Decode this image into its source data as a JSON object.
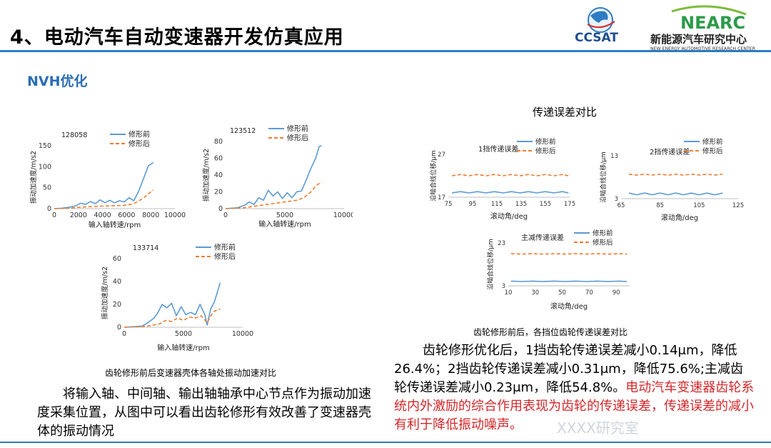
{
  "slide": {
    "title": "4、电动汽车自动变速器开发仿真应用",
    "subtitle": "NVH优化",
    "accent_color": "#2d7cc3",
    "highlight_color": "#d3272a"
  },
  "logos": {
    "ccsat": {
      "text": "CCSAT",
      "icon": "globe-logo-icon"
    },
    "nearc": {
      "text": "NEARC",
      "cn": "新能源汽车研究中心",
      "en": "NEW ENERGY AUTOMOTIVE RESEARCH CENTER"
    }
  },
  "legend": {
    "before": "修形前",
    "after": "修形后"
  },
  "left_caption": "齿轮修形前后变速器壳体各轴处振动加速对比",
  "left_paragraph": "将输入轴、中间轴、输出轴轴承中心节点作为振动加速度采集位置，从图中可以看出齿轮修形有效改善了变速器壳体的振动情况",
  "right_heading": "传递误差对比",
  "right_caption": "齿轮修形前后，各挡位齿轮传递误差对比",
  "right_paragraph_black": "齿轮修形优化后，1挡齿轮传递误差减小0.14μm，降低26.4%；2挡齿轮传递误差减小0.31μm，降低75.6%;主减齿轮传递误差减小0.23μm，降低54.8%。",
  "right_paragraph_red": "电动汽车变速器齿轮系统内外激励的综合作用表现为齿轮的传递误差，传递误差的减小有利于降低振动噪声。",
  "watermark": "XXXX研究室",
  "chart_data": [
    {
      "type": "line",
      "title": "128058",
      "xlabel": "输入轴转速/rpm",
      "ylabel": "振动加速度/m/s2",
      "xlim": [
        0,
        10000
      ],
      "ylim": [
        0,
        150
      ],
      "xticks": [
        "0",
        "2000",
        "4000",
        "6000",
        "8000",
        "10000"
      ],
      "yticks": [
        "0",
        "50",
        "100",
        "150"
      ],
      "legend": "top-right",
      "series": [
        {
          "name": "修形前",
          "color": "#5b9bd5",
          "dash": false,
          "x": [
            0,
            600,
            1200,
            1800,
            2200,
            2600,
            3000,
            3400,
            3800,
            4200,
            4600,
            5000,
            5400,
            5800,
            6200,
            6600,
            7000,
            7400,
            7800,
            8200
          ],
          "y": [
            0,
            1,
            3,
            7,
            13,
            10,
            17,
            12,
            21,
            14,
            20,
            14,
            19,
            16,
            26,
            19,
            42,
            72,
            102,
            110
          ]
        },
        {
          "name": "修形后",
          "color": "#ed7d31",
          "dash": true,
          "x": [
            0,
            1000,
            2000,
            3000,
            4000,
            5000,
            5800,
            6500,
            7000,
            7500,
            8000,
            8200
          ],
          "y": [
            0,
            1,
            3,
            5,
            6,
            7,
            8,
            11,
            18,
            28,
            40,
            45
          ]
        }
      ]
    },
    {
      "type": "line",
      "title": "123512",
      "xlabel": "输入轴转速/rpm",
      "ylabel": "振动加速度/m/s2",
      "xlim": [
        0,
        10000
      ],
      "ylim": [
        0,
        80
      ],
      "xticks": [
        "0",
        "5000",
        "10000"
      ],
      "yticks": [
        "0",
        "20",
        "40",
        "60",
        "80"
      ],
      "legend": "top-right",
      "series": [
        {
          "name": "修形前",
          "color": "#5b9bd5",
          "dash": false,
          "x": [
            0,
            1000,
            1600,
            2000,
            2400,
            2800,
            3200,
            3600,
            4000,
            4400,
            4800,
            5200,
            5600,
            6000,
            6400,
            6800,
            7200,
            7600,
            7900,
            8100
          ],
          "y": [
            0,
            1,
            4,
            8,
            5,
            13,
            10,
            22,
            15,
            20,
            12,
            19,
            13,
            20,
            21,
            34,
            48,
            60,
            74,
            75
          ]
        },
        {
          "name": "修形后",
          "color": "#ed7d31",
          "dash": true,
          "x": [
            0,
            1500,
            3000,
            4000,
            5000,
            6000,
            6600,
            7200,
            7700,
            8100
          ],
          "y": [
            0,
            1,
            4,
            6,
            8,
            10,
            13,
            20,
            28,
            32
          ]
        }
      ]
    },
    {
      "type": "line",
      "title": "133714",
      "xlabel": "输入轴转速/rpm",
      "ylabel": "振动加速度/m/s2",
      "xlim": [
        0,
        10000
      ],
      "ylim": [
        0,
        60
      ],
      "xticks": [
        "0",
        "5000",
        "10000"
      ],
      "yticks": [
        "0",
        "20",
        "40",
        "60"
      ],
      "legend": "top-right",
      "series": [
        {
          "name": "修形前",
          "color": "#5b9bd5",
          "dash": false,
          "x": [
            0,
            1500,
            2000,
            2500,
            2800,
            3200,
            3600,
            4000,
            4400,
            4800,
            5200,
            5600,
            6000,
            6400,
            6800,
            7000,
            7300,
            7600,
            7900,
            8100
          ],
          "y": [
            0,
            1,
            4,
            8,
            12,
            20,
            17,
            21,
            10,
            18,
            11,
            13,
            11,
            20,
            11,
            2,
            16,
            22,
            32,
            39
          ]
        },
        {
          "name": "修形后",
          "color": "#ed7d31",
          "dash": true,
          "x": [
            0,
            2000,
            3000,
            3500,
            4000,
            4500,
            5000,
            5500,
            6000,
            6500,
            7000,
            7300,
            7600,
            8100
          ],
          "y": [
            0,
            1,
            3,
            6,
            5,
            8,
            6,
            9,
            8,
            10,
            4,
            10,
            14,
            16
          ]
        }
      ]
    },
    {
      "type": "line",
      "title": "1挡传递误差",
      "xlabel": "滚动角/deg",
      "ylabel": "沿啮合线位移/μm",
      "xlim": [
        75,
        175
      ],
      "ylim": [
        17,
        27
      ],
      "xticks": [
        "75",
        "95",
        "115",
        "135",
        "155",
        "175"
      ],
      "yticks": [
        "17",
        "27"
      ],
      "legend": "top-right",
      "series": [
        {
          "name": "修形前",
          "color": "#5b9bd5",
          "dash": false,
          "x": [
            78,
            85,
            92,
            99,
            106,
            113,
            120,
            127,
            134,
            141,
            148,
            155,
            162,
            169,
            174
          ],
          "y": [
            18.0,
            18.3,
            18.0,
            18.3,
            18.0,
            18.3,
            18.0,
            18.3,
            18.0,
            18.3,
            18.0,
            18.3,
            18.0,
            18.3,
            18.0
          ]
        },
        {
          "name": "修形后",
          "color": "#ed7d31",
          "dash": true,
          "x": [
            78,
            85,
            92,
            99,
            106,
            113,
            120,
            127,
            134,
            141,
            148,
            155,
            162,
            169,
            174
          ],
          "y": [
            22.0,
            22.3,
            22.0,
            22.3,
            22.0,
            22.3,
            22.0,
            22.3,
            22.0,
            22.3,
            22.0,
            22.3,
            22.0,
            22.3,
            22.0
          ]
        }
      ]
    },
    {
      "type": "line",
      "title": "2挡传递误差",
      "xlabel": "滚动角/deg",
      "ylabel": "沿啮合线位移/μm",
      "xlim": [
        65,
        125
      ],
      "ylim": [
        3,
        13
      ],
      "xticks": [
        "65",
        "85",
        "105",
        "125"
      ],
      "yticks": [
        "3",
        "13"
      ],
      "legend": "top-right",
      "series": [
        {
          "name": "修形前",
          "color": "#5b9bd5",
          "dash": false,
          "x": [
            69,
            73,
            77,
            81,
            85,
            89,
            93,
            97,
            101,
            105,
            109,
            113,
            117
          ],
          "y": [
            4.3,
            3.9,
            4.3,
            3.9,
            4.3,
            3.9,
            4.3,
            3.9,
            4.3,
            3.9,
            4.3,
            3.9,
            4.3
          ]
        },
        {
          "name": "修形后",
          "color": "#ed7d31",
          "dash": true,
          "x": [
            69,
            73,
            77,
            81,
            85,
            89,
            93,
            97,
            101,
            105,
            109,
            113,
            117
          ],
          "y": [
            8.7,
            8.5,
            8.7,
            8.5,
            8.7,
            8.5,
            8.7,
            8.5,
            8.7,
            8.5,
            8.7,
            8.5,
            8.7
          ]
        }
      ]
    },
    {
      "type": "line",
      "title": "主减传递误差",
      "xlabel": "滚动角/deg",
      "ylabel": "沿啮合线位移/μm",
      "xlim": [
        10,
        100
      ],
      "ylim": [
        3,
        23
      ],
      "xticks": [
        "10",
        "30",
        "50",
        "70",
        "90"
      ],
      "yticks": [
        "3",
        "23"
      ],
      "legend": "top-right",
      "series": [
        {
          "name": "修形前",
          "color": "#5b9bd5",
          "dash": false,
          "x": [
            12,
            20,
            28,
            36,
            44,
            52,
            60,
            68,
            76,
            84,
            92,
            98
          ],
          "y": [
            5.2,
            5.0,
            5.2,
            5.0,
            5.2,
            5.0,
            5.2,
            5.0,
            5.2,
            5.0,
            5.2,
            5.0
          ]
        },
        {
          "name": "修形后",
          "color": "#ed7d31",
          "dash": true,
          "x": [
            12,
            20,
            28,
            36,
            44,
            52,
            60,
            68,
            76,
            84,
            92,
            98
          ],
          "y": [
            18.0,
            17.8,
            18.0,
            17.8,
            18.0,
            17.8,
            18.0,
            17.8,
            18.0,
            17.8,
            18.0,
            17.8
          ]
        }
      ]
    }
  ]
}
